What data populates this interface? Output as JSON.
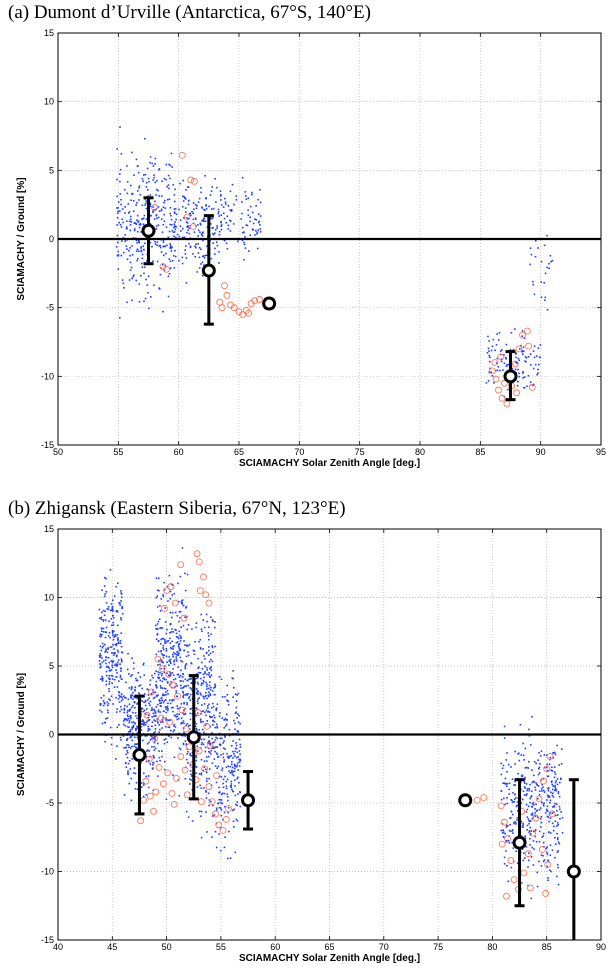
{
  "chart_data": [
    {
      "type": "scatter",
      "panel_title": "(a) Dumont d’Urville (Antarctica, 67°S, 140°E)",
      "xlabel": "SCIAMACHY Solar Zenith Angle [deg.]",
      "ylabel": "SCIAMACHY / Ground [%]",
      "xlim": [
        50,
        95
      ],
      "ylim": [
        -15,
        15
      ],
      "xticks": [
        50,
        55,
        60,
        65,
        70,
        75,
        80,
        85,
        90,
        95
      ],
      "yticks": [
        -15,
        -10,
        -5,
        0,
        5,
        10,
        15
      ],
      "grid": true,
      "reference_line_y": 0,
      "colors": {
        "blue_points": "#1f3fff",
        "red_circles": "#ff6a4a",
        "mean_marker": "#000000"
      },
      "binned_means": [
        {
          "x": 57.5,
          "y": 0.6,
          "yerr_low": -1.8,
          "yerr_high": 3.0
        },
        {
          "x": 62.5,
          "y": -2.3,
          "yerr_low": -6.2,
          "yerr_high": 1.7
        },
        {
          "x": 67.5,
          "y": -4.7,
          "yerr_low": -5.0,
          "yerr_high": -4.4
        },
        {
          "x": 87.5,
          "y": -10.0,
          "yerr_low": -11.7,
          "yerr_high": -8.2
        }
      ],
      "blue_clusters": [
        {
          "x_range": [
            54.8,
            59.5
          ],
          "y_range": [
            -6.5,
            8.5
          ],
          "n": 320
        },
        {
          "x_range": [
            59.5,
            63.0
          ],
          "y_range": [
            -4.5,
            6.0
          ],
          "n": 180
        },
        {
          "x_range": [
            63.0,
            66.8
          ],
          "y_range": [
            -2.5,
            5.0
          ],
          "n": 110
        },
        {
          "x_range": [
            85.5,
            90.0
          ],
          "y_range": [
            -12.0,
            -6.0
          ],
          "n": 110
        },
        {
          "x_range": [
            89.0,
            91.0
          ],
          "y_range": [
            -6.0,
            1.2
          ],
          "n": 25
        }
      ],
      "red_circles": [
        {
          "x": 60.3,
          "y": 6.1
        },
        {
          "x": 61.0,
          "y": 4.3
        },
        {
          "x": 61.3,
          "y": 4.2
        },
        {
          "x": 60.7,
          "y": 1.6
        },
        {
          "x": 61.2,
          "y": 0.9
        },
        {
          "x": 58.0,
          "y": 2.3
        },
        {
          "x": 58.7,
          "y": -2.0
        },
        {
          "x": 59.0,
          "y": -2.2
        },
        {
          "x": 63.8,
          "y": -3.4
        },
        {
          "x": 64.0,
          "y": -4.1
        },
        {
          "x": 64.3,
          "y": -4.8
        },
        {
          "x": 64.6,
          "y": -5.0
        },
        {
          "x": 65.0,
          "y": -5.3
        },
        {
          "x": 65.3,
          "y": -5.5
        },
        {
          "x": 65.6,
          "y": -5.2
        },
        {
          "x": 66.0,
          "y": -4.7
        },
        {
          "x": 66.3,
          "y": -4.5
        },
        {
          "x": 66.7,
          "y": -4.4
        },
        {
          "x": 63.6,
          "y": -5.0
        },
        {
          "x": 63.4,
          "y": -4.6
        },
        {
          "x": 65.8,
          "y": -5.4
        },
        {
          "x": 86.0,
          "y": -9.6
        },
        {
          "x": 86.3,
          "y": -10.2
        },
        {
          "x": 86.5,
          "y": -11.0
        },
        {
          "x": 86.8,
          "y": -11.6
        },
        {
          "x": 87.2,
          "y": -12.0
        },
        {
          "x": 87.6,
          "y": -10.7
        },
        {
          "x": 87.9,
          "y": -9.1
        },
        {
          "x": 88.2,
          "y": -8.0
        },
        {
          "x": 88.5,
          "y": -7.0
        },
        {
          "x": 88.9,
          "y": -6.7
        },
        {
          "x": 89.3,
          "y": -10.8
        },
        {
          "x": 86.2,
          "y": -9.0
        },
        {
          "x": 87.0,
          "y": -10.5
        },
        {
          "x": 88.0,
          "y": -11.2
        },
        {
          "x": 86.7,
          "y": -8.6
        },
        {
          "x": 89.0,
          "y": -7.8
        }
      ]
    },
    {
      "type": "scatter",
      "panel_title": "(b) Zhigansk (Eastern Siberia, 67°N, 123°E)",
      "xlabel": "SCIAMACHY Solar Zenith Angle [deg.]",
      "ylabel": "SCIAMACHY / Ground [%]",
      "xlim": [
        40,
        90
      ],
      "ylim": [
        -15,
        15
      ],
      "xticks": [
        40,
        45,
        50,
        55,
        60,
        65,
        70,
        75,
        80,
        85,
        90
      ],
      "yticks": [
        -15,
        -10,
        -5,
        0,
        5,
        10,
        15
      ],
      "grid": true,
      "reference_line_y": 0,
      "colors": {
        "blue_points": "#1f3fff",
        "red_circles": "#ff6a4a",
        "mean_marker": "#000000"
      },
      "binned_means": [
        {
          "x": 47.5,
          "y": -1.5,
          "yerr_low": -5.8,
          "yerr_high": 2.8
        },
        {
          "x": 52.5,
          "y": -0.2,
          "yerr_low": -4.7,
          "yerr_high": 4.3
        },
        {
          "x": 57.5,
          "y": -4.8,
          "yerr_low": -6.9,
          "yerr_high": -2.7
        },
        {
          "x": 77.5,
          "y": -4.8,
          "yerr_low": -5.0,
          "yerr_high": -4.6
        },
        {
          "x": 82.5,
          "y": -7.9,
          "yerr_low": -12.5,
          "yerr_high": -3.3
        },
        {
          "x": 87.5,
          "y": -10.0,
          "yerr_low": -16.5,
          "yerr_high": -3.3
        }
      ],
      "blue_clusters": [
        {
          "x_range": [
            43.8,
            46.0
          ],
          "y_range": [
            -2.0,
            13.8
          ],
          "n": 260
        },
        {
          "x_range": [
            46.0,
            49.0
          ],
          "y_range": [
            -6.0,
            7.0
          ],
          "n": 330
        },
        {
          "x_range": [
            49.0,
            52.0
          ],
          "y_range": [
            -6.0,
            14.5
          ],
          "n": 420
        },
        {
          "x_range": [
            52.0,
            54.5
          ],
          "y_range": [
            -9.0,
            12.0
          ],
          "n": 330
        },
        {
          "x_range": [
            54.5,
            56.8
          ],
          "y_range": [
            -11.0,
            7.0
          ],
          "n": 220
        },
        {
          "x_range": [
            80.8,
            86.5
          ],
          "y_range": [
            -12.5,
            2.0
          ],
          "n": 420
        }
      ],
      "red_circles": [
        {
          "x": 52.8,
          "y": 13.2
        },
        {
          "x": 53.0,
          "y": 12.6
        },
        {
          "x": 53.4,
          "y": 11.5
        },
        {
          "x": 53.1,
          "y": 10.5
        },
        {
          "x": 53.6,
          "y": 10.2
        },
        {
          "x": 53.9,
          "y": 9.6
        },
        {
          "x": 51.3,
          "y": 12.4
        },
        {
          "x": 50.4,
          "y": 10.8
        },
        {
          "x": 50.0,
          "y": 10.5
        },
        {
          "x": 50.8,
          "y": 9.6
        },
        {
          "x": 49.8,
          "y": 9.2
        },
        {
          "x": 51.6,
          "y": 8.5
        },
        {
          "x": 49.2,
          "y": 5.5
        },
        {
          "x": 49.6,
          "y": 4.8
        },
        {
          "x": 50.2,
          "y": 4.4
        },
        {
          "x": 50.6,
          "y": 3.6
        },
        {
          "x": 51.0,
          "y": 2.8
        },
        {
          "x": 51.4,
          "y": 1.8
        },
        {
          "x": 48.6,
          "y": 3.1
        },
        {
          "x": 48.2,
          "y": 1.4
        },
        {
          "x": 48.9,
          "y": -0.3
        },
        {
          "x": 48.4,
          "y": -1.8
        },
        {
          "x": 48.1,
          "y": -3.4
        },
        {
          "x": 48.5,
          "y": -4.5
        },
        {
          "x": 48.8,
          "y": -5.6
        },
        {
          "x": 47.6,
          "y": -6.3
        },
        {
          "x": 49.3,
          "y": -2.4
        },
        {
          "x": 49.7,
          "y": -3.6
        },
        {
          "x": 50.1,
          "y": -2.8
        },
        {
          "x": 50.5,
          "y": -4.3
        },
        {
          "x": 50.9,
          "y": -3.2
        },
        {
          "x": 51.3,
          "y": -1.6
        },
        {
          "x": 51.7,
          "y": -2.6
        },
        {
          "x": 52.1,
          "y": -0.9
        },
        {
          "x": 52.4,
          "y": -2.2
        },
        {
          "x": 52.7,
          "y": -3.3
        },
        {
          "x": 53.0,
          "y": -1.2
        },
        {
          "x": 53.5,
          "y": -2.5
        },
        {
          "x": 53.9,
          "y": -3.8
        },
        {
          "x": 54.2,
          "y": -4.9
        },
        {
          "x": 54.5,
          "y": -5.8
        },
        {
          "x": 54.8,
          "y": -6.6
        },
        {
          "x": 55.2,
          "y": -7.0
        },
        {
          "x": 55.5,
          "y": -6.2
        },
        {
          "x": 55.7,
          "y": -5.4
        },
        {
          "x": 54.0,
          "y": -0.8
        },
        {
          "x": 53.7,
          "y": 0.6
        },
        {
          "x": 52.9,
          "y": 1.6
        },
        {
          "x": 51.8,
          "y": 0.4
        },
        {
          "x": 50.3,
          "y": 0.9
        },
        {
          "x": 49.5,
          "y": 1.2
        },
        {
          "x": 47.9,
          "y": -4.8
        },
        {
          "x": 49.0,
          "y": -4.2
        },
        {
          "x": 50.7,
          "y": -5.1
        },
        {
          "x": 51.9,
          "y": -4.4
        },
        {
          "x": 53.2,
          "y": -4.9
        },
        {
          "x": 54.6,
          "y": -3.0
        },
        {
          "x": 78.6,
          "y": -4.8
        },
        {
          "x": 79.2,
          "y": -4.6
        },
        {
          "x": 80.8,
          "y": -5.2
        },
        {
          "x": 81.1,
          "y": -6.4
        },
        {
          "x": 81.4,
          "y": -7.6
        },
        {
          "x": 81.7,
          "y": -9.2
        },
        {
          "x": 82.0,
          "y": -10.6
        },
        {
          "x": 82.4,
          "y": -11.3
        },
        {
          "x": 82.9,
          "y": -10.1
        },
        {
          "x": 83.3,
          "y": -8.7
        },
        {
          "x": 83.7,
          "y": -7.2
        },
        {
          "x": 84.0,
          "y": -6.1
        },
        {
          "x": 84.3,
          "y": -4.7
        },
        {
          "x": 84.7,
          "y": -3.4
        },
        {
          "x": 85.0,
          "y": -2.5
        },
        {
          "x": 85.3,
          "y": -1.6
        },
        {
          "x": 84.6,
          "y": -8.4
        },
        {
          "x": 85.1,
          "y": -9.5
        },
        {
          "x": 85.5,
          "y": -5.8
        },
        {
          "x": 83.5,
          "y": -11.2
        },
        {
          "x": 81.3,
          "y": -11.8
        },
        {
          "x": 80.9,
          "y": -8.0
        },
        {
          "x": 82.7,
          "y": -5.6
        },
        {
          "x": 84.9,
          "y": -11.6
        }
      ]
    }
  ]
}
